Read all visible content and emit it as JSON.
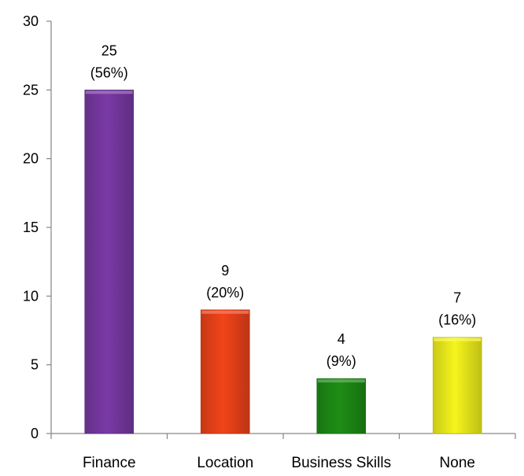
{
  "chart_data": {
    "type": "bar",
    "categories": [
      "Finance",
      "Location",
      "Business Skills",
      "None"
    ],
    "values": [
      25,
      9,
      4,
      7
    ],
    "data_labels": [
      [
        "25",
        "(56%)"
      ],
      [
        "9",
        "(20%)"
      ],
      [
        "4",
        "(9%)"
      ],
      [
        "7",
        "(16%)"
      ]
    ],
    "bar_colors": [
      "#7a3aa6",
      "#f2441a",
      "#1e8e16",
      "#f5f51c"
    ],
    "ylim": [
      0,
      30
    ],
    "yticks": [
      0,
      5,
      10,
      15,
      20,
      25,
      30
    ],
    "grid": false,
    "legend": "none"
  }
}
